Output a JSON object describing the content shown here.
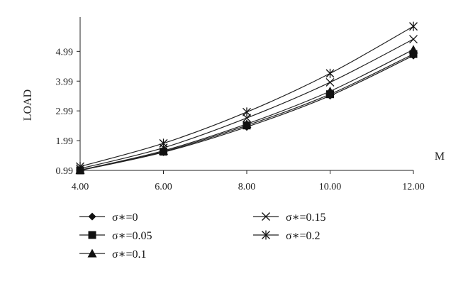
{
  "chart_data": {
    "type": "line",
    "title": "",
    "xlabel": "M",
    "ylabel": "LOAD",
    "x": [
      4,
      6,
      8,
      10,
      12
    ],
    "xticks": [
      "4.00",
      "6.00",
      "8.00",
      "10.00",
      "12.00"
    ],
    "yticks": [
      0.99,
      1.99,
      2.99,
      3.99,
      4.99
    ],
    "ytick_labels": [
      "0.99",
      "1.99",
      "2.99",
      "3.99",
      "4.99"
    ],
    "xlim": [
      4,
      12
    ],
    "ylim": [
      0.99,
      6.0
    ],
    "grid": false,
    "legend_position": "bottom",
    "series": [
      {
        "name": "σ∗=0",
        "marker": "diamond",
        "values": [
          0.99,
          1.6,
          2.45,
          3.5,
          4.85
        ]
      },
      {
        "name": "σ∗=0.05",
        "marker": "square",
        "values": [
          0.99,
          1.62,
          2.5,
          3.55,
          4.9
        ]
      },
      {
        "name": "σ∗=0.1",
        "marker": "triangle",
        "values": [
          1.0,
          1.65,
          2.55,
          3.65,
          5.05
        ]
      },
      {
        "name": "σ∗=0.15",
        "marker": "x",
        "values": [
          1.05,
          1.75,
          2.75,
          3.95,
          5.4
        ]
      },
      {
        "name": "σ∗=0.2",
        "marker": "asterisk",
        "values": [
          1.12,
          1.9,
          2.95,
          4.25,
          5.83
        ]
      }
    ]
  }
}
